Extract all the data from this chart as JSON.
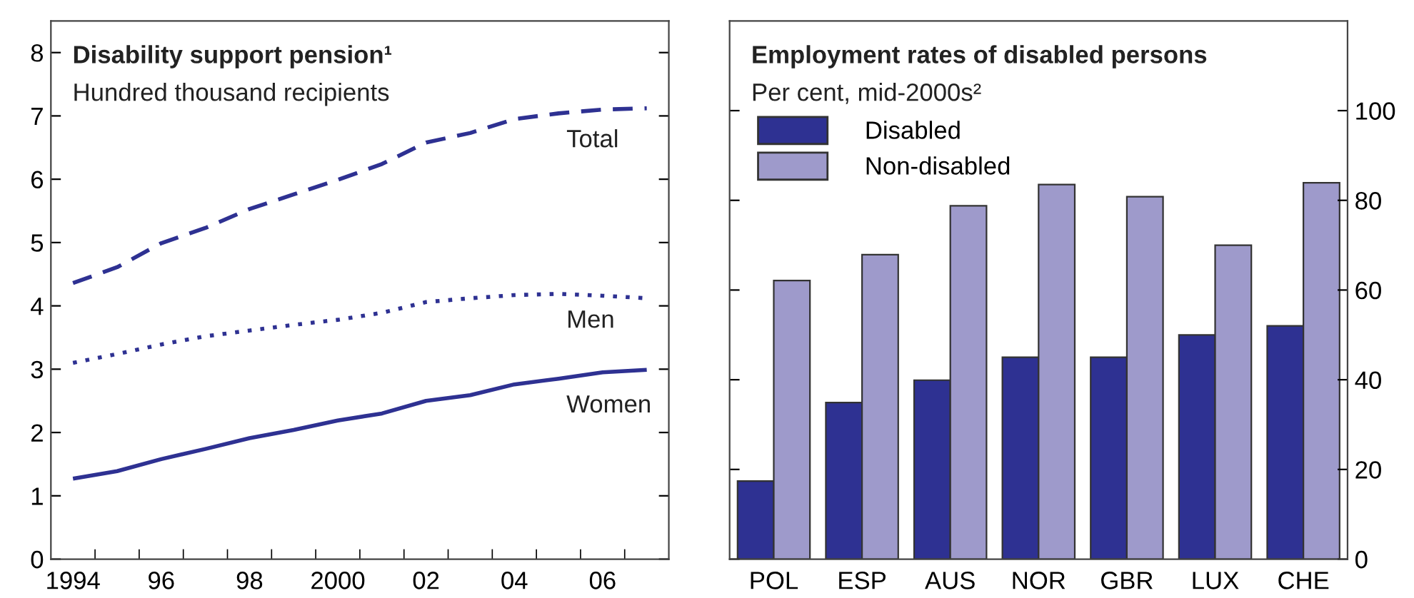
{
  "chart_data": [
    {
      "type": "line",
      "title": "Disability support pension¹",
      "subtitle": "Hundred thousand recipients",
      "x": [
        1994,
        1995,
        1996,
        1997,
        1998,
        1999,
        2000,
        2001,
        2002,
        2003,
        2004,
        2005,
        2006,
        2007
      ],
      "series": [
        {
          "name": "Total",
          "color": "#2e3192",
          "line_style": "dashed",
          "values": [
            4.36,
            4.61,
            4.99,
            5.23,
            5.53,
            5.76,
            5.99,
            6.24,
            6.58,
            6.73,
            6.95,
            7.04,
            7.1,
            7.12
          ]
        },
        {
          "name": "Men",
          "color": "#2e3192",
          "line_style": "dotted",
          "values": [
            3.1,
            3.24,
            3.39,
            3.52,
            3.61,
            3.7,
            3.78,
            3.89,
            4.06,
            4.12,
            4.17,
            4.19,
            4.16,
            4.12
          ]
        },
        {
          "name": "Women",
          "color": "#2e3192",
          "line_style": "solid",
          "values": [
            1.27,
            1.39,
            1.58,
            1.74,
            1.91,
            2.04,
            2.19,
            2.3,
            2.5,
            2.59,
            2.76,
            2.85,
            2.95,
            2.99
          ]
        }
      ],
      "xlim": [
        1993.5,
        2007.5
      ],
      "ylim": [
        0,
        8.5
      ],
      "xticks": [
        {
          "value": 1994,
          "label": "1994"
        },
        {
          "value": 1996,
          "label": "96"
        },
        {
          "value": 1998,
          "label": "98"
        },
        {
          "value": 2000,
          "label": "2000"
        },
        {
          "value": 2002,
          "label": "02"
        },
        {
          "value": 2004,
          "label": "04"
        },
        {
          "value": 2006,
          "label": "06"
        },
        {
          "value": 1994.5,
          "label": null
        },
        {
          "value": 1995.5,
          "label": null
        },
        {
          "value": 1996.5,
          "label": null
        },
        {
          "value": 1997.5,
          "label": null
        },
        {
          "value": 1998.5,
          "label": null
        },
        {
          "value": 1999.5,
          "label": null
        },
        {
          "value": 2000.5,
          "label": null
        },
        {
          "value": 2001.5,
          "label": null
        },
        {
          "value": 2002.5,
          "label": null
        },
        {
          "value": 2003.5,
          "label": null
        },
        {
          "value": 2004.5,
          "label": null
        },
        {
          "value": 2005.5,
          "label": null
        },
        {
          "value": 2006.5,
          "label": null
        }
      ],
      "yticks": [
        0,
        1,
        2,
        3,
        4,
        5,
        6,
        7,
        8
      ],
      "grid": false
    },
    {
      "type": "bar",
      "title": "Employment rates of disabled persons",
      "subtitle": "Per cent, mid-2000s²",
      "categories": [
        "POL",
        "ESP",
        "AUS",
        "NOR",
        "GBR",
        "LUX",
        "CHE"
      ],
      "series": [
        {
          "name": "Disabled",
          "color": "#2e3192",
          "values": [
            17.4,
            34.9,
            39.9,
            45,
            45,
            50,
            52
          ]
        },
        {
          "name": "Non-disabled",
          "color": "#9e9acb",
          "values": [
            62.1,
            67.9,
            78.8,
            83.5,
            80.8,
            70,
            83.9
          ]
        }
      ],
      "ylim": [
        0,
        120
      ],
      "yticks": [
        0,
        20,
        40,
        60,
        80,
        100
      ],
      "grid": false,
      "legend": "top left"
    }
  ]
}
